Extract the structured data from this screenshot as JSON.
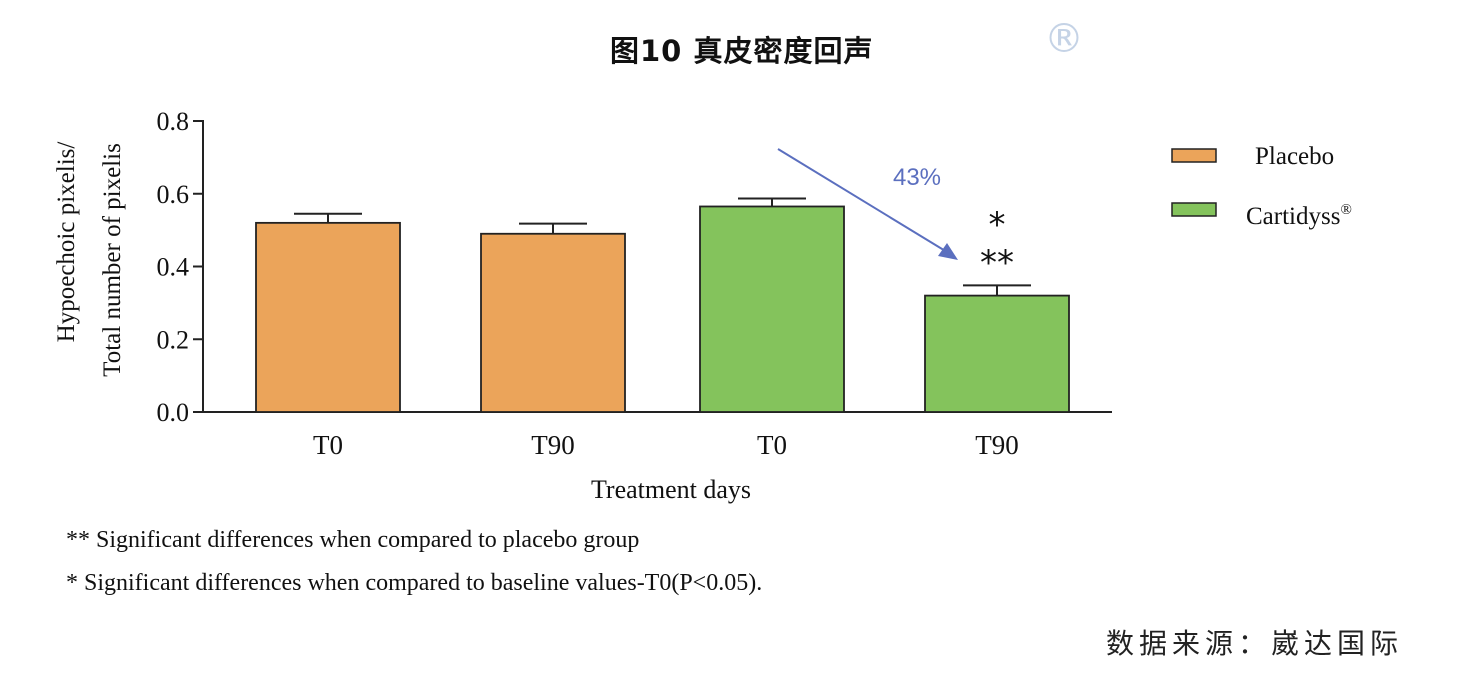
{
  "title": "图10 真皮密度回声",
  "title_mark": "®",
  "chart_data": {
    "type": "bar",
    "title": "图10 真皮密度回声",
    "xlabel": "Treatment days",
    "ylabel_lines": [
      "Hypoechoic pixelis/",
      "Total number of pixelis"
    ],
    "ylim": [
      0,
      0.8
    ],
    "yticks": [
      "0.0",
      "0.2",
      "0.4",
      "0.6",
      "0.8"
    ],
    "categories": [
      "T0",
      "T90",
      "T0",
      "T90"
    ],
    "values": [
      0.52,
      0.49,
      0.565,
      0.32
    ],
    "errors": [
      0.025,
      0.028,
      0.022,
      0.028
    ],
    "bar_series": [
      "Placebo",
      "Placebo",
      "Cartidyss",
      "Cartidyss"
    ],
    "series": [
      {
        "name": "Placebo",
        "color": "#eba45a"
      },
      {
        "name": "Cartidyss",
        "sup": "®",
        "color": "#84c35c"
      }
    ],
    "legend_position": "right",
    "annotations": {
      "change_label": "43%",
      "star_single": "*",
      "star_double": "**",
      "arrow_color": "#5b6fbf"
    }
  },
  "footnotes": [
    "** Significant differences when compared to placebo group",
    "* Significant differences when compared to baseline values-T0(P<0.05)."
  ],
  "source": "数据来源：崴达国际"
}
